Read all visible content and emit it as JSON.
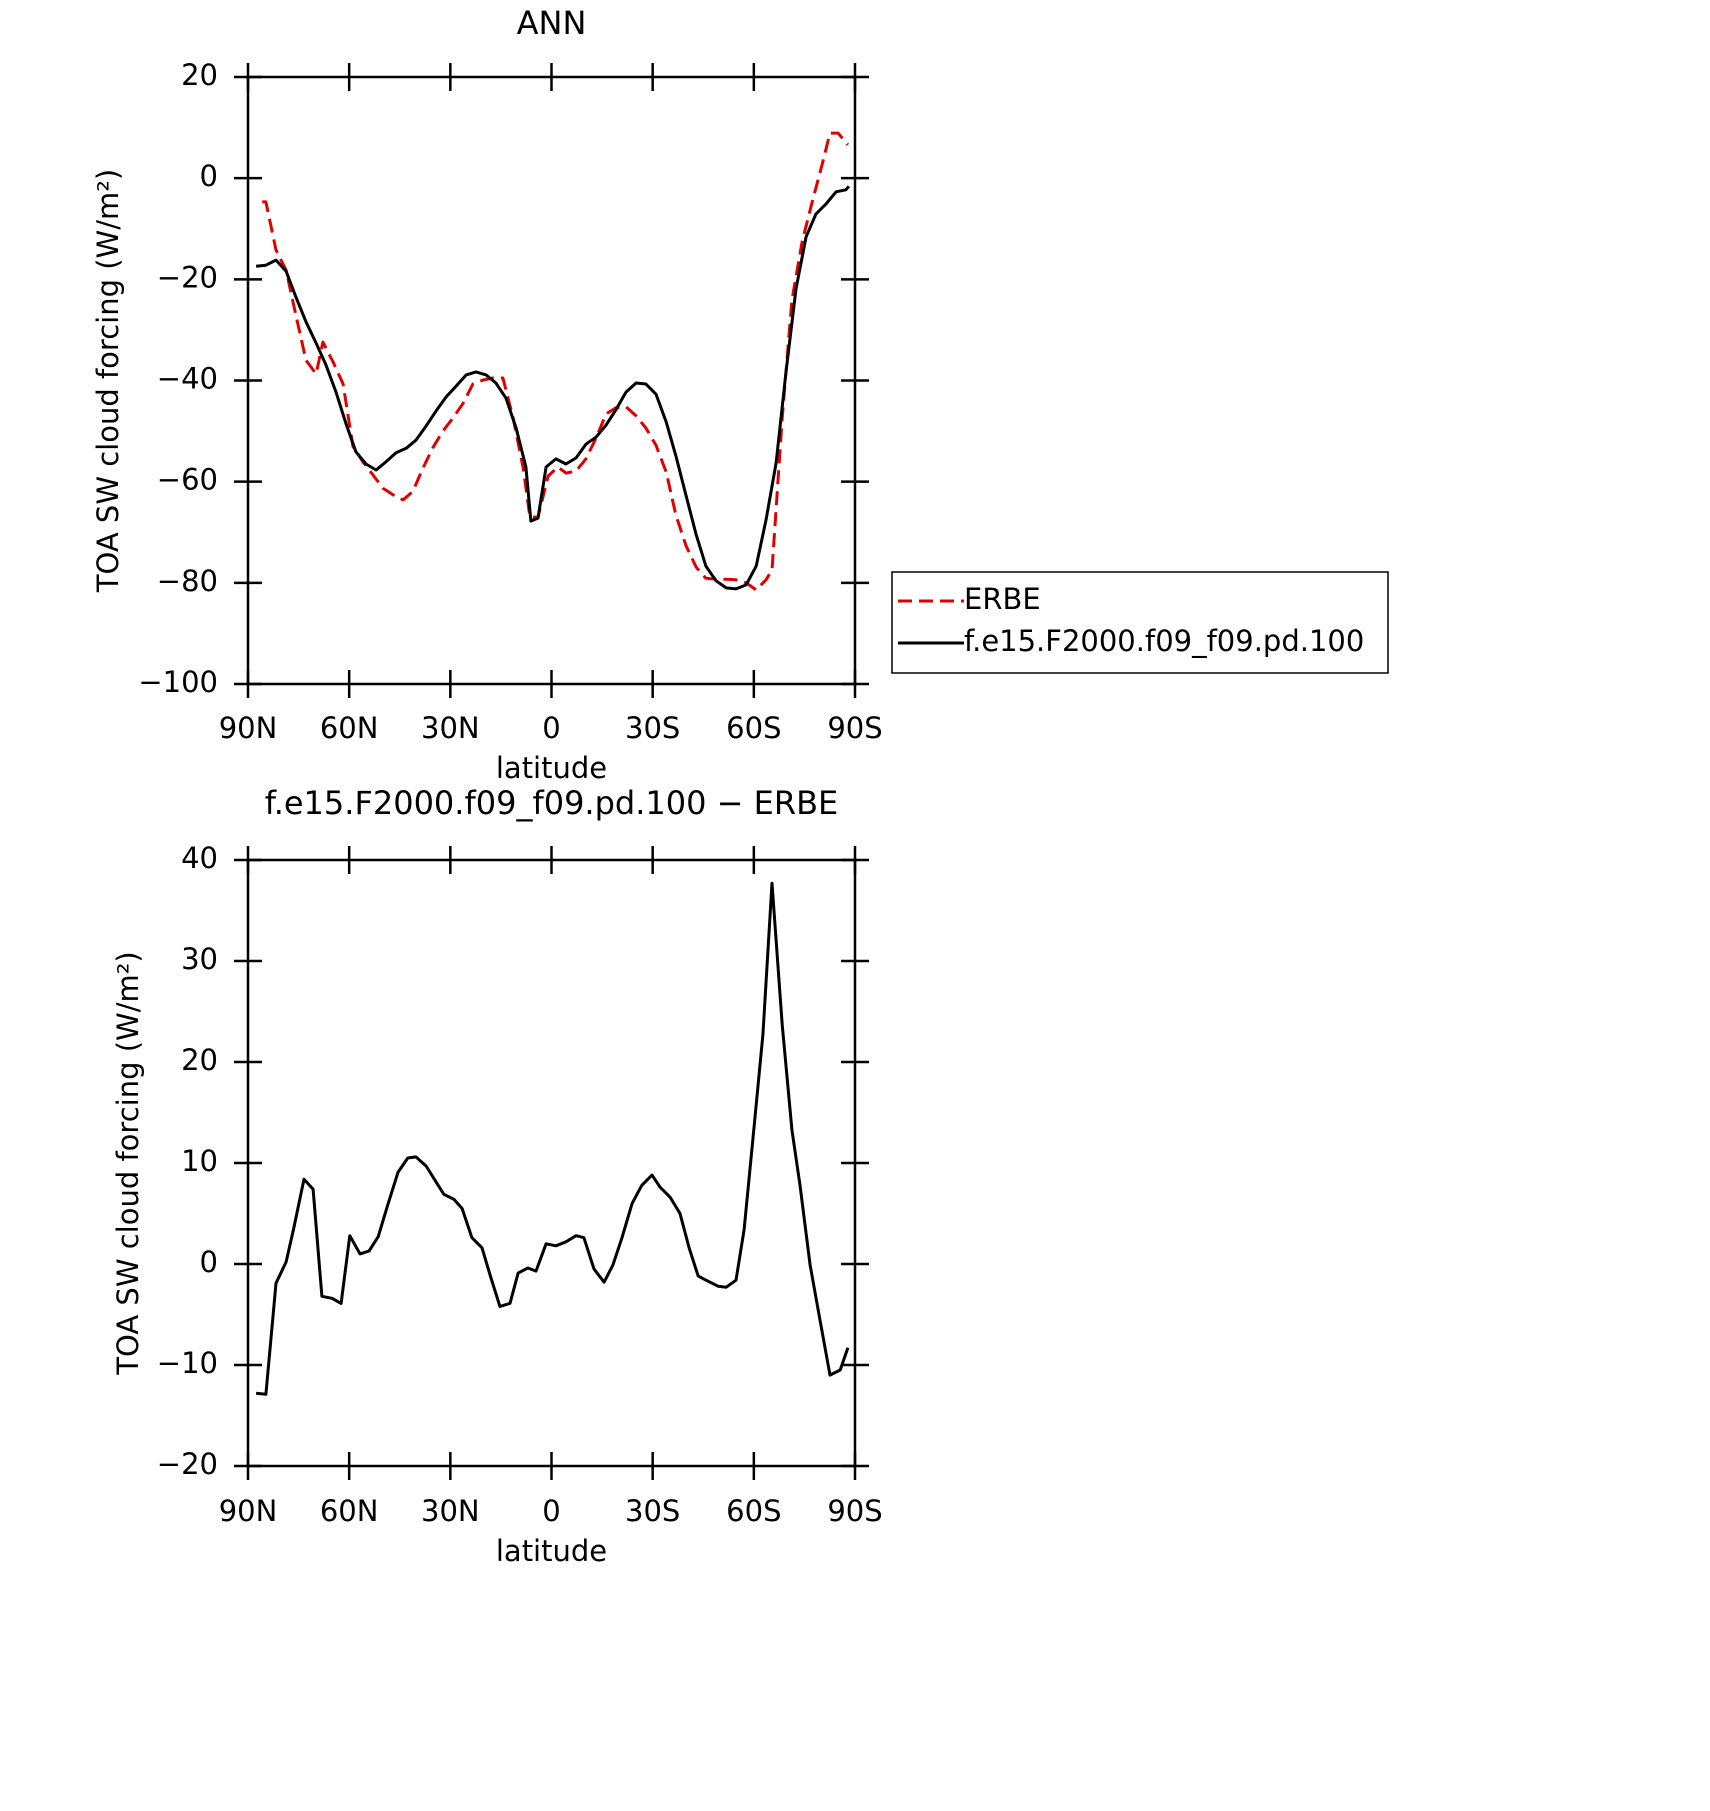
{
  "chart_data": [
    {
      "type": "line",
      "title": "ANN",
      "xlabel": "latitude",
      "ylabel": "TOA SW cloud forcing (W/m²)",
      "xlim": [
        90,
        -90
      ],
      "ylim": [
        -100,
        20
      ],
      "xticks": [
        {
          "value": 90,
          "label": "90N"
        },
        {
          "value": 60,
          "label": "60N"
        },
        {
          "value": 30,
          "label": "30N"
        },
        0,
        {
          "value": -30,
          "label": "30S"
        },
        {
          "value": -60,
          "label": "60S"
        },
        {
          "value": -90,
          "label": "90S"
        }
      ],
      "yticks": [
        {
          "value": -100,
          "label": "−100"
        },
        {
          "value": -80,
          "label": "−80"
        },
        {
          "value": -60,
          "label": "−60"
        },
        {
          "value": -40,
          "label": "−40"
        },
        {
          "value": -20,
          "label": "−20"
        },
        0,
        20
      ],
      "legend": "right",
      "series": [
        {
          "name": "ERBE",
          "color": "#e00000",
          "dashed": true,
          "x": [
            85.8,
            84.7,
            81.7,
            78.7,
            75.8,
            72.8,
            69.8,
            67.8,
            64.8,
            61.8,
            58.9,
            55.9,
            52.9,
            50.0,
            47.0,
            44.0,
            41.1,
            38.1,
            35.1,
            32.2,
            29.2,
            26.2,
            23.3,
            20.3,
            17.3,
            14.4,
            11.4,
            8.4,
            6.4,
            4.0,
            1.0,
            -1.9,
            -4.3,
            -7.3,
            -10.2,
            -13.2,
            -16.2,
            -19.1,
            -22.1,
            -25.1,
            -28.0,
            -31.0,
            -34.0,
            -36.9,
            -39.9,
            -42.9,
            -45.8,
            -48.8,
            -51.8,
            -54.7,
            -57.7,
            -60.7,
            -63.6,
            -65.4,
            -68.4,
            -71.3,
            -74.3,
            -77.3,
            -80.2,
            -82.6,
            -85.0,
            -87.9
          ],
          "values": [
            -4.7,
            -4.7,
            -14.2,
            -18.2,
            -27.1,
            -36.0,
            -38.7,
            -32.4,
            -36.3,
            -40.7,
            -53.0,
            -56.1,
            -58.7,
            -61.3,
            -62.6,
            -63.6,
            -61.9,
            -57.3,
            -53.2,
            -50.0,
            -47.4,
            -44.5,
            -40.7,
            -39.9,
            -39.5,
            -39.5,
            -47.4,
            -57.3,
            -67.0,
            -67.0,
            -58.9,
            -57.1,
            -58.3,
            -57.9,
            -55.5,
            -51.4,
            -46.6,
            -45.4,
            -45.2,
            -47.0,
            -49.4,
            -52.8,
            -58.1,
            -66.6,
            -72.7,
            -76.9,
            -79.1,
            -79.3,
            -79.3,
            -79.4,
            -80.0,
            -81.4,
            -79.4,
            -77.5,
            -47.4,
            -24.1,
            -12.6,
            -4.7,
            2.6,
            8.9,
            8.9,
            6.6
          ]
        },
        {
          "name": "f.e15.F2000.f09_f09.pd.100",
          "color": "#000000",
          "dashed": false,
          "x": [
            87.6,
            84.7,
            81.7,
            78.7,
            75.8,
            72.8,
            69.8,
            66.9,
            63.9,
            60.9,
            58.0,
            55.0,
            52.0,
            49.1,
            46.1,
            43.1,
            40.2,
            37.2,
            34.2,
            31.3,
            28.3,
            25.3,
            22.4,
            19.4,
            16.5,
            13.5,
            10.5,
            7.6,
            6.1,
            4.0,
            1.6,
            -1.3,
            -4.3,
            -7.3,
            -10.2,
            -13.2,
            -16.2,
            -19.1,
            -22.1,
            -25.1,
            -28.0,
            -31.0,
            -34.0,
            -36.9,
            -39.9,
            -42.9,
            -45.8,
            -48.8,
            -51.8,
            -54.7,
            -57.7,
            -60.7,
            -63.6,
            -66.6,
            -69.5,
            -72.5,
            -75.5,
            -78.4,
            -81.4,
            -84.4,
            -87.3,
            -88.2
          ],
          "values": [
            -17.4,
            -17.2,
            -16.2,
            -18.4,
            -23.5,
            -28.4,
            -32.6,
            -36.9,
            -42.3,
            -48.6,
            -54.1,
            -56.5,
            -57.7,
            -56.1,
            -54.3,
            -53.4,
            -51.8,
            -49.0,
            -46.0,
            -43.3,
            -41.1,
            -38.9,
            -38.3,
            -38.9,
            -40.5,
            -43.5,
            -49.4,
            -57.1,
            -67.8,
            -67.2,
            -57.1,
            -55.5,
            -56.5,
            -55.3,
            -52.6,
            -51.2,
            -48.8,
            -45.8,
            -42.3,
            -40.5,
            -40.7,
            -42.7,
            -48.2,
            -54.9,
            -62.8,
            -70.5,
            -76.7,
            -79.6,
            -81.0,
            -81.2,
            -80.4,
            -76.7,
            -67.6,
            -56.3,
            -38.5,
            -21.9,
            -11.6,
            -7.1,
            -5.1,
            -2.7,
            -2.3,
            -1.6
          ]
        }
      ]
    },
    {
      "type": "line",
      "title": "f.e15.F2000.f09_f09.pd.100 − ERBE",
      "xlabel": "latitude",
      "ylabel": "TOA SW cloud forcing (W/m²)",
      "xlim": [
        90,
        -90
      ],
      "ylim": [
        -20,
        40
      ],
      "xticks": [
        {
          "value": 90,
          "label": "90N"
        },
        {
          "value": 60,
          "label": "60N"
        },
        {
          "value": 30,
          "label": "30N"
        },
        0,
        {
          "value": -30,
          "label": "30S"
        },
        {
          "value": -60,
          "label": "60S"
        },
        {
          "value": -90,
          "label": "90S"
        }
      ],
      "yticks": [
        {
          "value": -20,
          "label": "−20"
        },
        {
          "value": -10,
          "label": "−10"
        },
        0,
        10,
        20,
        30,
        40
      ],
      "series": [
        {
          "color": "#000000",
          "dashed": false,
          "x": [
            87.6,
            84.7,
            81.7,
            78.7,
            76.4,
            73.4,
            70.7,
            68.1,
            65.1,
            62.4,
            59.8,
            56.8,
            54.1,
            51.4,
            48.5,
            45.5,
            42.6,
            40.2,
            37.2,
            34.2,
            31.9,
            28.9,
            26.5,
            23.6,
            20.6,
            18.2,
            15.3,
            12.3,
            9.9,
            7.0,
            4.6,
            1.6,
            -1.3,
            -4.3,
            -7.3,
            -9.6,
            -12.6,
            -15.6,
            -18.2,
            -20.9,
            -23.9,
            -26.8,
            -29.8,
            -32.2,
            -35.2,
            -38.1,
            -40.8,
            -43.5,
            -46.4,
            -49.4,
            -51.8,
            -54.7,
            -57.1,
            -60.1,
            -62.7,
            -65.4,
            -68.4,
            -71.3,
            -73.7,
            -76.7,
            -79.6,
            -82.6,
            -85.6,
            -87.9
          ],
          "values": [
            -12.8,
            -12.9,
            -1.9,
            0.2,
            3.6,
            8.4,
            7.4,
            -3.2,
            -3.4,
            -3.9,
            2.8,
            1.0,
            1.3,
            2.7,
            5.9,
            9.1,
            10.5,
            10.6,
            9.7,
            8.1,
            6.9,
            6.4,
            5.5,
            2.6,
            1.6,
            -1.1,
            -4.2,
            -3.9,
            -0.9,
            -0.4,
            -0.7,
            2.0,
            1.8,
            2.2,
            2.8,
            2.6,
            -0.5,
            -1.8,
            -0.1,
            2.6,
            6.0,
            7.8,
            8.8,
            7.6,
            6.6,
            5.0,
            1.6,
            -1.2,
            -1.7,
            -2.2,
            -2.3,
            -1.6,
            3.4,
            13.7,
            22.7,
            37.7,
            23.7,
            13.3,
            7.8,
            -0.1,
            -5.5,
            -11.0,
            -10.5,
            -8.3
          ]
        }
      ]
    }
  ]
}
